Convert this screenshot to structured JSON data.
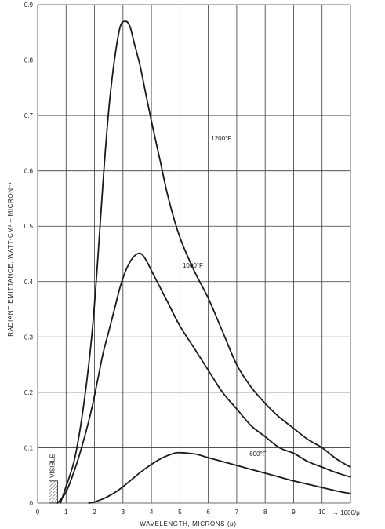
{
  "chart_data": {
    "type": "line",
    "xlabel": "WAVELENGTH, MICRONS (μ)",
    "ylabel": "RADIANT EMITTANCE, WATT-CM² – MICRON⁻¹",
    "xlim": [
      0,
      11
    ],
    "ylim": [
      0,
      0.9
    ],
    "x_ticks": [
      "0",
      "1",
      "2",
      "3",
      "4",
      "5",
      "6",
      "7",
      "8",
      "9",
      "10"
    ],
    "y_ticks": [
      "0",
      "0.1",
      "0.2",
      "0.3",
      "0.4",
      "0.5",
      "0.6",
      "0.7",
      "0.8",
      "0.9"
    ],
    "x_tail_label": "→ 1000/μ",
    "grid": true,
    "visible_band": {
      "label": "VISIBLE",
      "x": [
        0.4,
        0.7
      ],
      "y": 0.04
    },
    "series": [
      {
        "name": "1200°F",
        "x": [
          0.8,
          1.0,
          1.3,
          1.6,
          1.9,
          2.1,
          2.3,
          2.5,
          2.7,
          2.9,
          3.1,
          3.25,
          3.4,
          3.6,
          3.8,
          4.0,
          4.3,
          4.6,
          5.0,
          5.5,
          6.0,
          6.5,
          7.0,
          7.5,
          8.0,
          8.5,
          9.0,
          9.5,
          10.0,
          10.5,
          11.0
        ],
        "y": [
          0.0,
          0.03,
          0.08,
          0.17,
          0.3,
          0.43,
          0.58,
          0.71,
          0.8,
          0.86,
          0.87,
          0.86,
          0.83,
          0.79,
          0.74,
          0.69,
          0.62,
          0.55,
          0.48,
          0.42,
          0.37,
          0.31,
          0.25,
          0.21,
          0.18,
          0.155,
          0.135,
          0.115,
          0.1,
          0.08,
          0.065
        ]
      },
      {
        "name": "1000°F",
        "x": [
          0.7,
          1.0,
          1.3,
          1.6,
          1.9,
          2.1,
          2.3,
          2.5,
          2.7,
          2.9,
          3.1,
          3.3,
          3.5,
          3.65,
          3.8,
          4.0,
          4.3,
          4.6,
          5.0,
          5.5,
          6.0,
          6.5,
          7.0,
          7.5,
          8.0,
          8.5,
          9.0,
          9.5,
          10.0,
          10.5,
          11.0
        ],
        "y": [
          0.0,
          0.02,
          0.06,
          0.11,
          0.17,
          0.22,
          0.27,
          0.31,
          0.35,
          0.39,
          0.42,
          0.44,
          0.45,
          0.45,
          0.44,
          0.42,
          0.39,
          0.36,
          0.32,
          0.28,
          0.24,
          0.2,
          0.17,
          0.14,
          0.12,
          0.1,
          0.09,
          0.075,
          0.065,
          0.055,
          0.047
        ]
      },
      {
        "name": "600°F",
        "x": [
          1.8,
          2.0,
          2.4,
          2.8,
          3.2,
          3.6,
          4.0,
          4.4,
          4.8,
          5.0,
          5.3,
          5.6,
          6.0,
          6.5,
          7.0,
          7.5,
          8.0,
          8.5,
          9.0,
          9.5,
          10.0,
          10.5,
          11.0
        ],
        "y": [
          0.0,
          0.002,
          0.01,
          0.022,
          0.038,
          0.055,
          0.07,
          0.082,
          0.09,
          0.091,
          0.09,
          0.088,
          0.082,
          0.075,
          0.068,
          0.061,
          0.054,
          0.047,
          0.04,
          0.034,
          0.028,
          0.022,
          0.017
        ]
      }
    ]
  }
}
